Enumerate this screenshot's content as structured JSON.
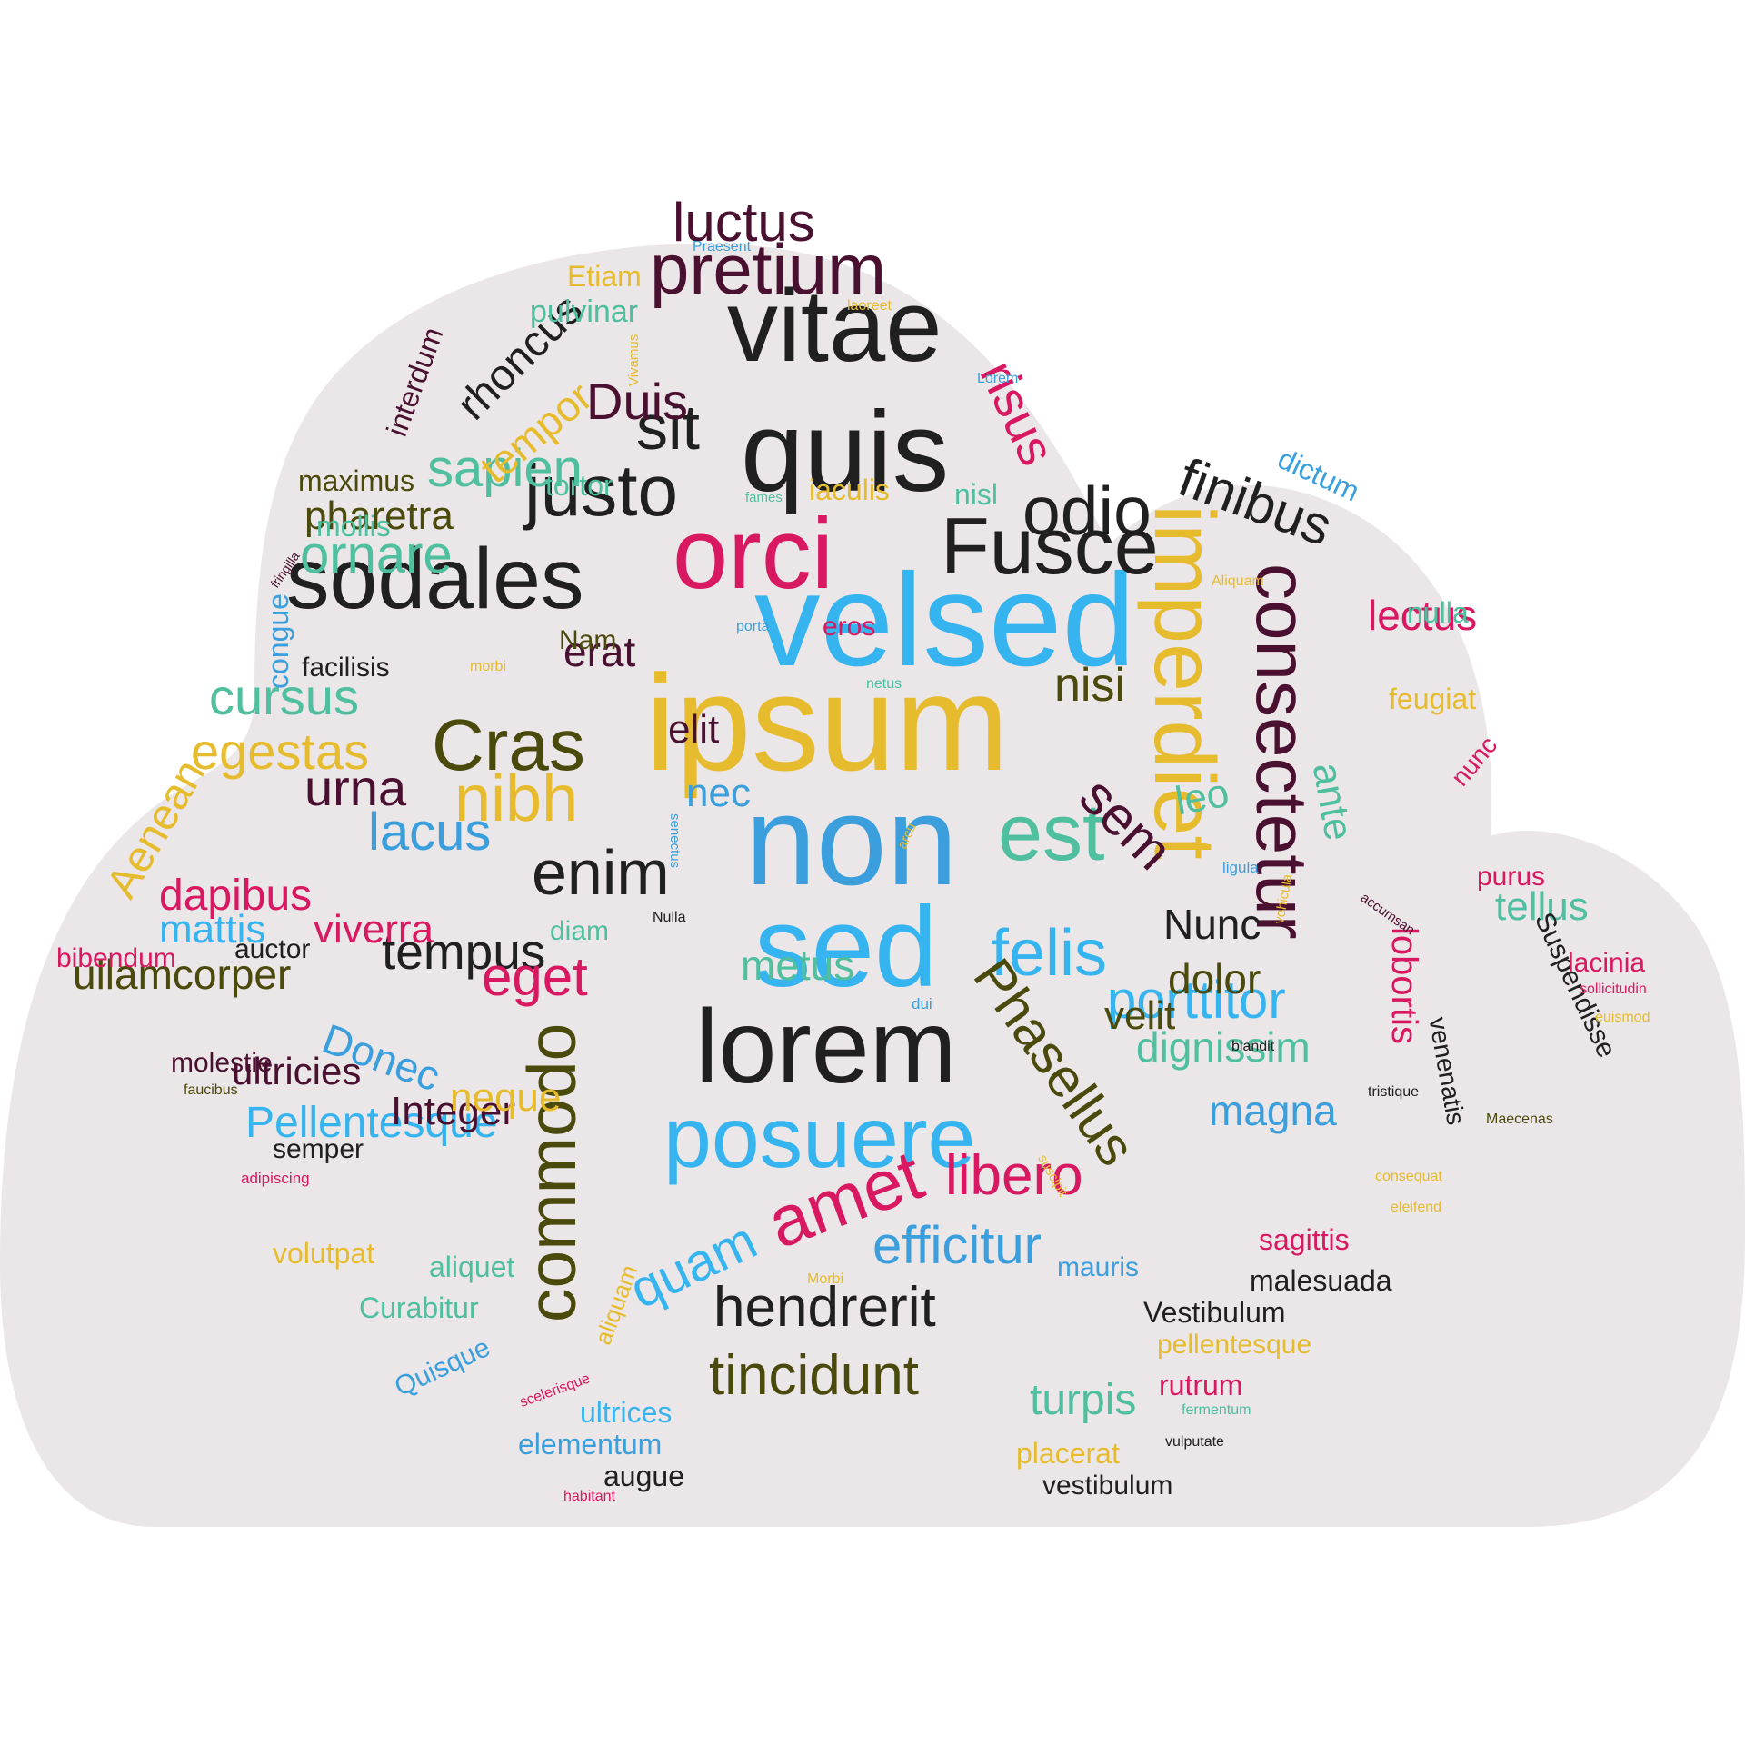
{
  "palette": {
    "background": "#ffffff",
    "cloud": "#ebe6e8",
    "dark": "#202020",
    "maroon": "#4a1030",
    "crimson": "#d81860",
    "olive": "#4a4a0c",
    "gold": "#e6bc2e",
    "teal": "#4fbf9f",
    "sky": "#36b4ef",
    "blue": "#3a9fdc"
  },
  "words": [
    {
      "text": "ipsum",
      "color": "gold"
    },
    {
      "text": "velsed",
      "color": "sky"
    },
    {
      "text": "orci",
      "color": "crimson"
    },
    {
      "text": "non",
      "color": "blue"
    },
    {
      "text": "sed",
      "color": "sky"
    },
    {
      "text": "quis",
      "color": "dark"
    },
    {
      "text": "vitae",
      "color": "dark"
    },
    {
      "text": "lorem",
      "color": "dark"
    },
    {
      "text": "imperdiet",
      "color": "gold"
    },
    {
      "text": "sodales",
      "color": "dark"
    },
    {
      "text": "posuere",
      "color": "sky"
    },
    {
      "text": "consectetur",
      "color": "maroon"
    },
    {
      "text": "commodo",
      "color": "olive"
    },
    {
      "text": "Fusce",
      "color": "dark"
    },
    {
      "text": "pretium",
      "color": "maroon"
    },
    {
      "text": "est",
      "color": "teal"
    },
    {
      "text": "justo",
      "color": "dark"
    },
    {
      "text": "Cras",
      "color": "olive"
    },
    {
      "text": "amet",
      "color": "crimson"
    },
    {
      "text": "odio",
      "color": "dark"
    },
    {
      "text": "enim",
      "color": "dark"
    },
    {
      "text": "sit",
      "color": "dark"
    },
    {
      "text": "nibh",
      "color": "gold"
    },
    {
      "text": "felis",
      "color": "sky"
    },
    {
      "text": "finibus",
      "color": "dark"
    },
    {
      "text": "Phasellus",
      "color": "olive"
    },
    {
      "text": "sem",
      "color": "maroon"
    },
    {
      "text": "hendrerit",
      "color": "dark"
    },
    {
      "text": "tincidunt",
      "color": "olive"
    },
    {
      "text": "libero",
      "color": "crimson"
    },
    {
      "text": "quam",
      "color": "sky"
    },
    {
      "text": "efficitur",
      "color": "blue"
    },
    {
      "text": "porttitor",
      "color": "sky"
    },
    {
      "text": "luctus",
      "color": "maroon"
    },
    {
      "text": "Duis",
      "color": "maroon"
    },
    {
      "text": "sapien",
      "color": "teal"
    },
    {
      "text": "risus",
      "color": "crimson"
    },
    {
      "text": "tempus",
      "color": "dark"
    },
    {
      "text": "ornare",
      "color": "teal"
    },
    {
      "text": "egestas",
      "color": "gold"
    },
    {
      "text": "cursus",
      "color": "teal"
    },
    {
      "text": "lacus",
      "color": "blue"
    },
    {
      "text": "urna",
      "color": "maroon"
    },
    {
      "text": "eget",
      "color": "crimson"
    },
    {
      "text": "rhoncus",
      "color": "dark"
    },
    {
      "text": "lectus",
      "color": "crimson"
    },
    {
      "text": "nisi",
      "color": "olive"
    },
    {
      "text": "tempor",
      "color": "gold"
    },
    {
      "text": "dignissim",
      "color": "teal"
    },
    {
      "text": "magna",
      "color": "blue"
    },
    {
      "text": "Pellentesque",
      "color": "sky"
    },
    {
      "text": "Aenean",
      "color": "gold"
    },
    {
      "text": "dapibus",
      "color": "crimson"
    },
    {
      "text": "Nunc",
      "color": "dark"
    },
    {
      "text": "dolor",
      "color": "olive"
    },
    {
      "text": "lobortis",
      "color": "crimson"
    },
    {
      "text": "ullamcorper",
      "color": "olive"
    },
    {
      "text": "Donec",
      "color": "blue"
    },
    {
      "text": "ultricies",
      "color": "maroon"
    },
    {
      "text": "Integer",
      "color": "maroon"
    },
    {
      "text": "metus",
      "color": "teal"
    },
    {
      "text": "viverra",
      "color": "crimson"
    },
    {
      "text": "tellus",
      "color": "teal"
    },
    {
      "text": "mattis",
      "color": "sky"
    },
    {
      "text": "velit",
      "color": "olive"
    },
    {
      "text": "neque",
      "color": "gold"
    },
    {
      "text": "pharetra",
      "color": "olive"
    },
    {
      "text": "ante",
      "color": "teal"
    },
    {
      "text": "leo",
      "color": "teal"
    },
    {
      "text": "Suspendisse",
      "color": "dark"
    },
    {
      "text": "elit",
      "color": "maroon"
    },
    {
      "text": "nec",
      "color": "blue"
    },
    {
      "text": "erat",
      "color": "maroon"
    },
    {
      "text": "congue",
      "color": "blue"
    },
    {
      "text": "interdum",
      "color": "maroon"
    },
    {
      "text": "venenatis",
      "color": "dark"
    },
    {
      "text": "pulvinar",
      "color": "teal"
    },
    {
      "text": "maximus",
      "color": "olive"
    },
    {
      "text": "Etiam",
      "color": "gold"
    },
    {
      "text": "tortor",
      "color": "teal"
    },
    {
      "text": "mollis",
      "color": "teal"
    },
    {
      "text": "iaculis",
      "color": "gold"
    },
    {
      "text": "nisl",
      "color": "teal"
    },
    {
      "text": "dictum",
      "color": "blue"
    },
    {
      "text": "nulla",
      "color": "teal"
    },
    {
      "text": "feugiat",
      "color": "gold"
    },
    {
      "text": "nunc",
      "color": "crimson"
    },
    {
      "text": "purus",
      "color": "crimson"
    },
    {
      "text": "lacinia",
      "color": "crimson"
    },
    {
      "text": "facilisis",
      "color": "dark"
    },
    {
      "text": "Nam",
      "color": "olive"
    },
    {
      "text": "eros",
      "color": "crimson"
    },
    {
      "text": "auctor",
      "color": "dark"
    },
    {
      "text": "bibendum",
      "color": "crimson"
    },
    {
      "text": "diam",
      "color": "teal"
    },
    {
      "text": "molestie",
      "color": "maroon"
    },
    {
      "text": "semper",
      "color": "dark"
    },
    {
      "text": "volutpat",
      "color": "gold"
    },
    {
      "text": "aliquet",
      "color": "teal"
    },
    {
      "text": "Curabitur",
      "color": "teal"
    },
    {
      "text": "Quisque",
      "color": "blue"
    },
    {
      "text": "aliquam",
      "color": "gold"
    },
    {
      "text": "mauris",
      "color": "blue"
    },
    {
      "text": "malesuada",
      "color": "dark"
    },
    {
      "text": "Vestibulum",
      "color": "dark"
    },
    {
      "text": "pellentesque",
      "color": "gold"
    },
    {
      "text": "sagittis",
      "color": "crimson"
    },
    {
      "text": "rutrum",
      "color": "crimson"
    },
    {
      "text": "turpis",
      "color": "teal"
    },
    {
      "text": "ultrices",
      "color": "sky"
    },
    {
      "text": "elementum",
      "color": "blue"
    },
    {
      "text": "augue",
      "color": "dark"
    },
    {
      "text": "placerat",
      "color": "gold"
    },
    {
      "text": "vestibulum",
      "color": "dark"
    },
    {
      "text": "Praesent",
      "color": "blue"
    },
    {
      "text": "laoreet",
      "color": "gold"
    },
    {
      "text": "Lorem",
      "color": "blue"
    },
    {
      "text": "Vivamus",
      "color": "gold"
    },
    {
      "text": "fames",
      "color": "teal"
    },
    {
      "text": "fringilla",
      "color": "maroon"
    },
    {
      "text": "Aliquam",
      "color": "gold"
    },
    {
      "text": "porta",
      "color": "blue"
    },
    {
      "text": "morbi",
      "color": "gold"
    },
    {
      "text": "netus",
      "color": "teal"
    },
    {
      "text": "arcu",
      "color": "gold"
    },
    {
      "text": "senectus",
      "color": "blue"
    },
    {
      "text": "ligula",
      "color": "blue"
    },
    {
      "text": "vehicula",
      "color": "gold"
    },
    {
      "text": "accumsan",
      "color": "maroon"
    },
    {
      "text": "Nulla",
      "color": "dark"
    },
    {
      "text": "sollicitudin",
      "color": "crimson"
    },
    {
      "text": "euismod",
      "color": "gold"
    },
    {
      "text": "dui",
      "color": "blue"
    },
    {
      "text": "blandit",
      "color": "dark"
    },
    {
      "text": "tristique",
      "color": "dark"
    },
    {
      "text": "Maecenas",
      "color": "olive"
    },
    {
      "text": "faucibus",
      "color": "olive"
    },
    {
      "text": "adipiscing",
      "color": "crimson"
    },
    {
      "text": "suscipit",
      "color": "gold"
    },
    {
      "text": "consequat",
      "color": "gold"
    },
    {
      "text": "eleifend",
      "color": "gold"
    },
    {
      "text": "Morbi",
      "color": "gold"
    },
    {
      "text": "scelerisque",
      "color": "crimson"
    },
    {
      "text": "fermentum",
      "color": "teal"
    },
    {
      "text": "vulputate",
      "color": "dark"
    },
    {
      "text": "habitant",
      "color": "crimson"
    }
  ]
}
